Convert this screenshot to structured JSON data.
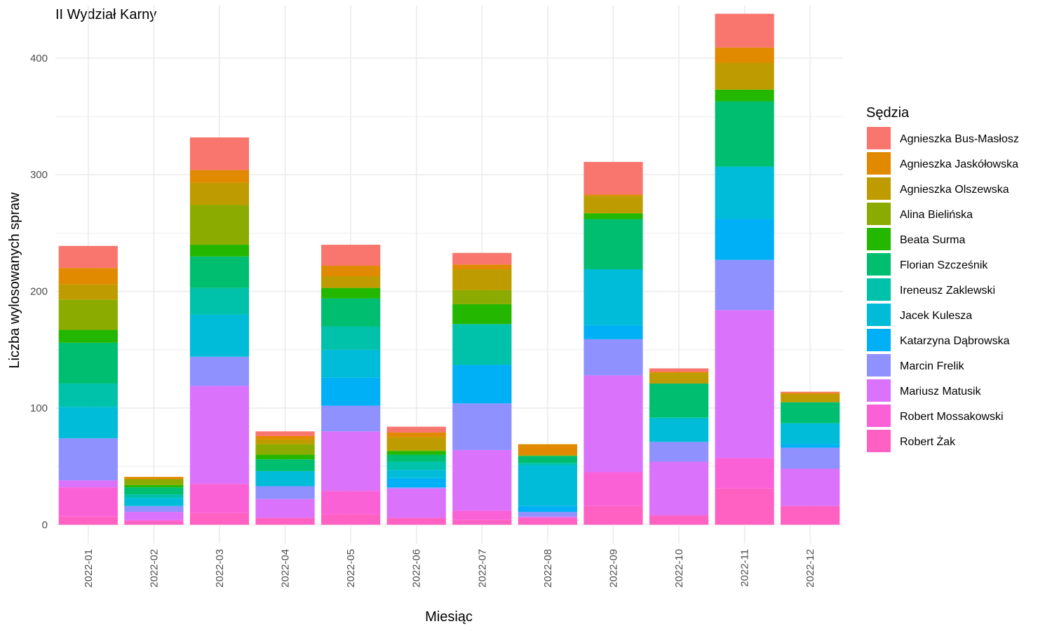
{
  "chart_data": {
    "type": "bar",
    "stacked": true,
    "title": "II Wydział Karny",
    "xlabel": "Miesiąc",
    "ylabel": "Liczba wylosowanych spraw",
    "ylim": [
      -16,
      445
    ],
    "yticks": [
      0,
      100,
      200,
      300,
      400
    ],
    "grid": true,
    "legend_position": "right",
    "legend_title": "Sędzia",
    "categories": [
      "2022-01",
      "2022-02",
      "2022-03",
      "2022-04",
      "2022-05",
      "2022-06",
      "2022-07",
      "2022-08",
      "2022-09",
      "2022-10",
      "2022-11",
      "2022-12"
    ],
    "series": [
      {
        "name": "Robert Żak",
        "color": "#FF61C3",
        "values": [
          7,
          3,
          10,
          6,
          9,
          6,
          4,
          6,
          16,
          8,
          31,
          16
        ]
      },
      {
        "name": "Robert Mossakowski",
        "color": "#FB61D7",
        "values": [
          25,
          1,
          25,
          0,
          20,
          0,
          8,
          0,
          29,
          0,
          26,
          0
        ]
      },
      {
        "name": "Mariusz Matusik",
        "color": "#DB72FB",
        "values": [
          6,
          7,
          84,
          16,
          51,
          25,
          52,
          1,
          83,
          46,
          127,
          32
        ]
      },
      {
        "name": "Marcin Frelik",
        "color": "#8F91FF",
        "values": [
          36,
          5,
          25,
          11,
          22,
          1,
          40,
          4,
          31,
          17,
          43,
          18
        ]
      },
      {
        "name": "Katarzyna Dąbrowska",
        "color": "#00B0F6",
        "values": [
          0,
          0,
          0,
          0,
          24,
          8,
          33,
          5,
          12,
          0,
          35,
          3
        ]
      },
      {
        "name": "Jacek Kulesza",
        "color": "#00BCD8",
        "values": [
          27,
          7,
          36,
          13,
          24,
          7,
          0,
          35,
          48,
          20,
          45,
          18
        ]
      },
      {
        "name": "Ireneusz Zaklewski",
        "color": "#00C1AA",
        "values": [
          20,
          3,
          23,
          0,
          20,
          7,
          35,
          2,
          0,
          1,
          0,
          0
        ]
      },
      {
        "name": "Florian Szcześnik",
        "color": "#00BE70",
        "values": [
          35,
          6,
          27,
          10,
          24,
          6,
          0,
          6,
          43,
          29,
          56,
          18
        ]
      },
      {
        "name": "Beata Surma",
        "color": "#24B700",
        "values": [
          11,
          2,
          10,
          4,
          9,
          3,
          17,
          0,
          5,
          0,
          10,
          0
        ]
      },
      {
        "name": "Alina Bielińska",
        "color": "#8CAB00",
        "values": [
          26,
          5,
          34,
          9,
          0,
          1,
          12,
          0,
          0,
          0,
          0,
          0
        ]
      },
      {
        "name": "Agnieszka Olszewska",
        "color": "#BE9C00",
        "values": [
          13,
          0,
          19,
          4,
          10,
          11,
          18,
          1,
          15,
          9,
          23,
          7
        ]
      },
      {
        "name": "Agnieszka Jaskółowska",
        "color": "#E18A00",
        "values": [
          14,
          2,
          11,
          3,
          9,
          4,
          4,
          9,
          1,
          1,
          13,
          1
        ]
      },
      {
        "name": "Agnieszka Bus-Masłosz",
        "color": "#F8766D",
        "values": [
          19,
          0,
          28,
          4,
          18,
          5,
          10,
          0,
          28,
          3,
          29,
          1
        ]
      }
    ]
  }
}
